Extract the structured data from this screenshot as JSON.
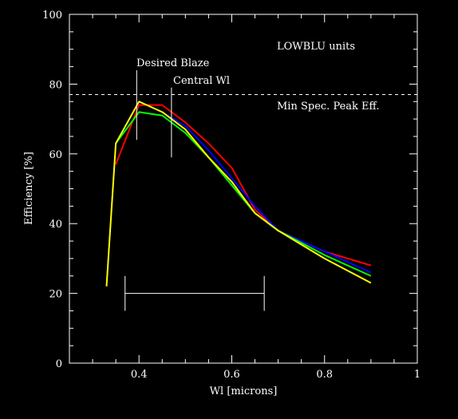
{
  "chart_data": {
    "type": "line",
    "xlabel": "Wl [microns]",
    "ylabel": "Efficiency [%]",
    "xlim": [
      0.25,
      1.0
    ],
    "ylim": [
      0,
      100
    ],
    "x_ticks": [
      0.4,
      0.6,
      0.8,
      1
    ],
    "x_tick_labels": [
      "0.4",
      "0.6",
      "0.8",
      "1"
    ],
    "y_ticks": [
      0,
      20,
      40,
      60,
      80,
      100
    ],
    "y_tick_labels": [
      "0",
      "20",
      "40",
      "60",
      "80",
      "100"
    ],
    "grid": false,
    "series": [
      {
        "color": "#ff0000",
        "x": [
          0.35,
          0.4,
          0.45,
          0.5,
          0.55,
          0.6,
          0.65,
          0.7,
          0.8,
          0.9
        ],
        "y": [
          57,
          74,
          74,
          69,
          63,
          56,
          44,
          38,
          32,
          28
        ]
      },
      {
        "color": "#0000ff",
        "x": [
          0.35,
          0.4,
          0.45,
          0.5,
          0.55,
          0.6,
          0.65,
          0.7,
          0.8,
          0.9
        ],
        "y": [
          63,
          75,
          72,
          68,
          61,
          53,
          45,
          38,
          32,
          26
        ]
      },
      {
        "color": "#00ff00",
        "x": [
          0.35,
          0.4,
          0.45,
          0.5,
          0.55,
          0.6,
          0.65,
          0.7,
          0.8,
          0.9
        ],
        "y": [
          63,
          72,
          71,
          66,
          59,
          51,
          43,
          38,
          31,
          25
        ]
      },
      {
        "color": "#ffff00",
        "x": [
          0.33,
          0.35,
          0.4,
          0.45,
          0.5,
          0.55,
          0.6,
          0.65,
          0.7,
          0.8,
          0.9
        ],
        "y": [
          22,
          63,
          75,
          72,
          67,
          59,
          52,
          43,
          38,
          30,
          23
        ]
      }
    ],
    "reference_line": {
      "y": 77,
      "style": "dashed",
      "label": "Min Spec. Peak Eff."
    },
    "desired_blaze": {
      "x": 0.395,
      "y_from": 64,
      "y_to": 84,
      "label": "Desired Blaze"
    },
    "central_wl": {
      "x": 0.47,
      "y_from": 59,
      "y_to": 79,
      "label": "Central Wl"
    },
    "range_bar": {
      "x_from": 0.37,
      "x_to": 0.67,
      "y": 20,
      "cap_from": 15,
      "cap_to": 25
    },
    "annotation_units": "LOWBLU units"
  }
}
